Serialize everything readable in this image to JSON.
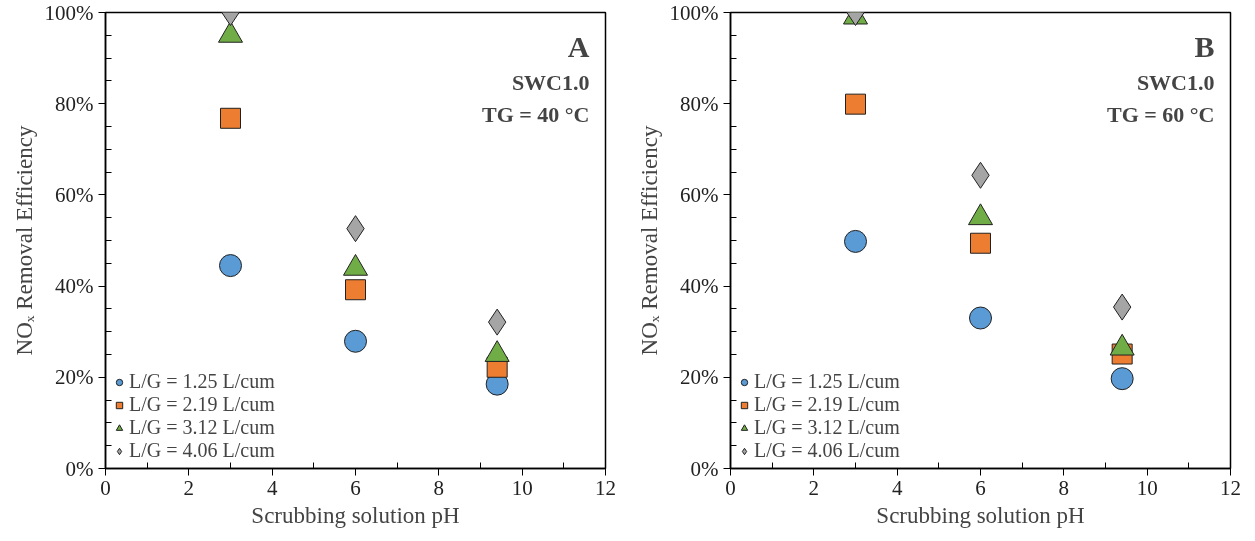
{
  "chart_data": [
    {
      "type": "scatter",
      "xlabel": "Scrubbing solution pH",
      "ylabel": "NOₓ Removal Efficiency",
      "annotations": [
        "A",
        "SWC1.0",
        "TG = 40 °C"
      ],
      "x": [
        3,
        6,
        9.4
      ],
      "xlim": [
        0,
        12
      ],
      "xticks": [
        0,
        2,
        4,
        6,
        8,
        10,
        12
      ],
      "ylim": [
        0,
        100
      ],
      "yticks": [
        {
          "value": 0,
          "label": "0%"
        },
        {
          "value": 20,
          "label": "20%"
        },
        {
          "value": 40,
          "label": "40%"
        },
        {
          "value": 60,
          "label": "60%"
        },
        {
          "value": 80,
          "label": "80%"
        },
        {
          "value": 100,
          "label": "100%"
        }
      ],
      "legend": "bottom left",
      "series": [
        {
          "name": "L/G = 1.25 L/cum",
          "color": "#5b9bd5",
          "marker": "circle",
          "values": [
            44.5,
            27.9,
            18.5
          ]
        },
        {
          "name": "L/G = 2.19 L/cum",
          "color": "#ed7d31",
          "marker": "square",
          "values": [
            76.8,
            39.2,
            22.2
          ]
        },
        {
          "name": "L/G = 3.12 L/cum",
          "color": "#70ad47",
          "marker": "triangle",
          "values": [
            95,
            43.9,
            25
          ]
        },
        {
          "name": "L/G = 4.06 L/cum",
          "color": "#a5a5a5",
          "marker": "diamond",
          "values": [
            100,
            52.6,
            32.1
          ]
        }
      ]
    },
    {
      "type": "scatter",
      "xlabel": "Scrubbing solution pH",
      "ylabel": "NOₓ Removal Efficiency",
      "annotations": [
        "B",
        "SWC1.0",
        "TG = 60 °C"
      ],
      "x": [
        3,
        6,
        9.4
      ],
      "xlim": [
        0,
        12
      ],
      "xticks": [
        0,
        2,
        4,
        6,
        8,
        10,
        12
      ],
      "ylim": [
        0,
        100
      ],
      "yticks": [
        {
          "value": 0,
          "label": "0%"
        },
        {
          "value": 20,
          "label": "20%"
        },
        {
          "value": 40,
          "label": "40%"
        },
        {
          "value": 60,
          "label": "60%"
        },
        {
          "value": 80,
          "label": "80%"
        },
        {
          "value": 100,
          "label": "100%"
        }
      ],
      "legend": "bottom left",
      "series": [
        {
          "name": "L/G = 1.25 L/cum",
          "color": "#5b9bd5",
          "marker": "circle",
          "values": [
            49.8,
            33.0,
            19.7
          ]
        },
        {
          "name": "L/G = 2.19 L/cum",
          "color": "#ed7d31",
          "marker": "square",
          "values": [
            79.9,
            49.4,
            25.1
          ]
        },
        {
          "name": "L/G = 3.12 L/cum",
          "color": "#70ad47",
          "marker": "triangle",
          "values": [
            99,
            55,
            26.4
          ]
        },
        {
          "name": "L/G = 4.06 L/cum",
          "color": "#a5a5a5",
          "marker": "diamond",
          "values": [
            100,
            64.3,
            35.4
          ]
        }
      ]
    }
  ]
}
